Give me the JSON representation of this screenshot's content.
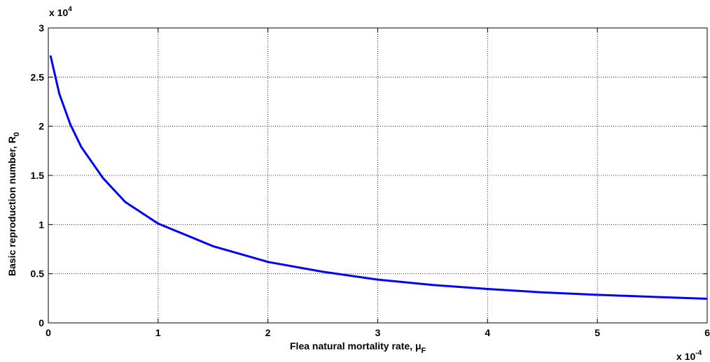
{
  "chart_data": {
    "type": "line",
    "xlabel": "Flea natural mortality rate, μ",
    "xlabel_sub": "F",
    "ylabel": "Basic reproduction number, R",
    "ylabel_sub": "0",
    "x_multiplier": {
      "base": "x 10",
      "exponent": "-4"
    },
    "y_multiplier": {
      "base": "x 10",
      "exponent": "4"
    },
    "xlim": [
      0,
      6
    ],
    "ylim": [
      0,
      3
    ],
    "x_ticks": [
      "0",
      "1",
      "2",
      "3",
      "4",
      "5",
      "6"
    ],
    "y_ticks": [
      "0",
      "0.5",
      "1",
      "1.5",
      "2",
      "2.5",
      "3"
    ],
    "grid": true,
    "line_color": "#0000ff",
    "series": [
      {
        "x": [
          0.02,
          0.1,
          0.2,
          0.3,
          0.5,
          0.7,
          1.0,
          1.5,
          2.0,
          2.5,
          3.0,
          3.5,
          4.0,
          4.5,
          5.0,
          5.5,
          6.0
        ],
        "values": [
          2.72,
          2.33,
          2.02,
          1.79,
          1.47,
          1.23,
          1.01,
          0.78,
          0.62,
          0.52,
          0.44,
          0.385,
          0.345,
          0.31,
          0.285,
          0.265,
          0.245
        ]
      }
    ]
  }
}
